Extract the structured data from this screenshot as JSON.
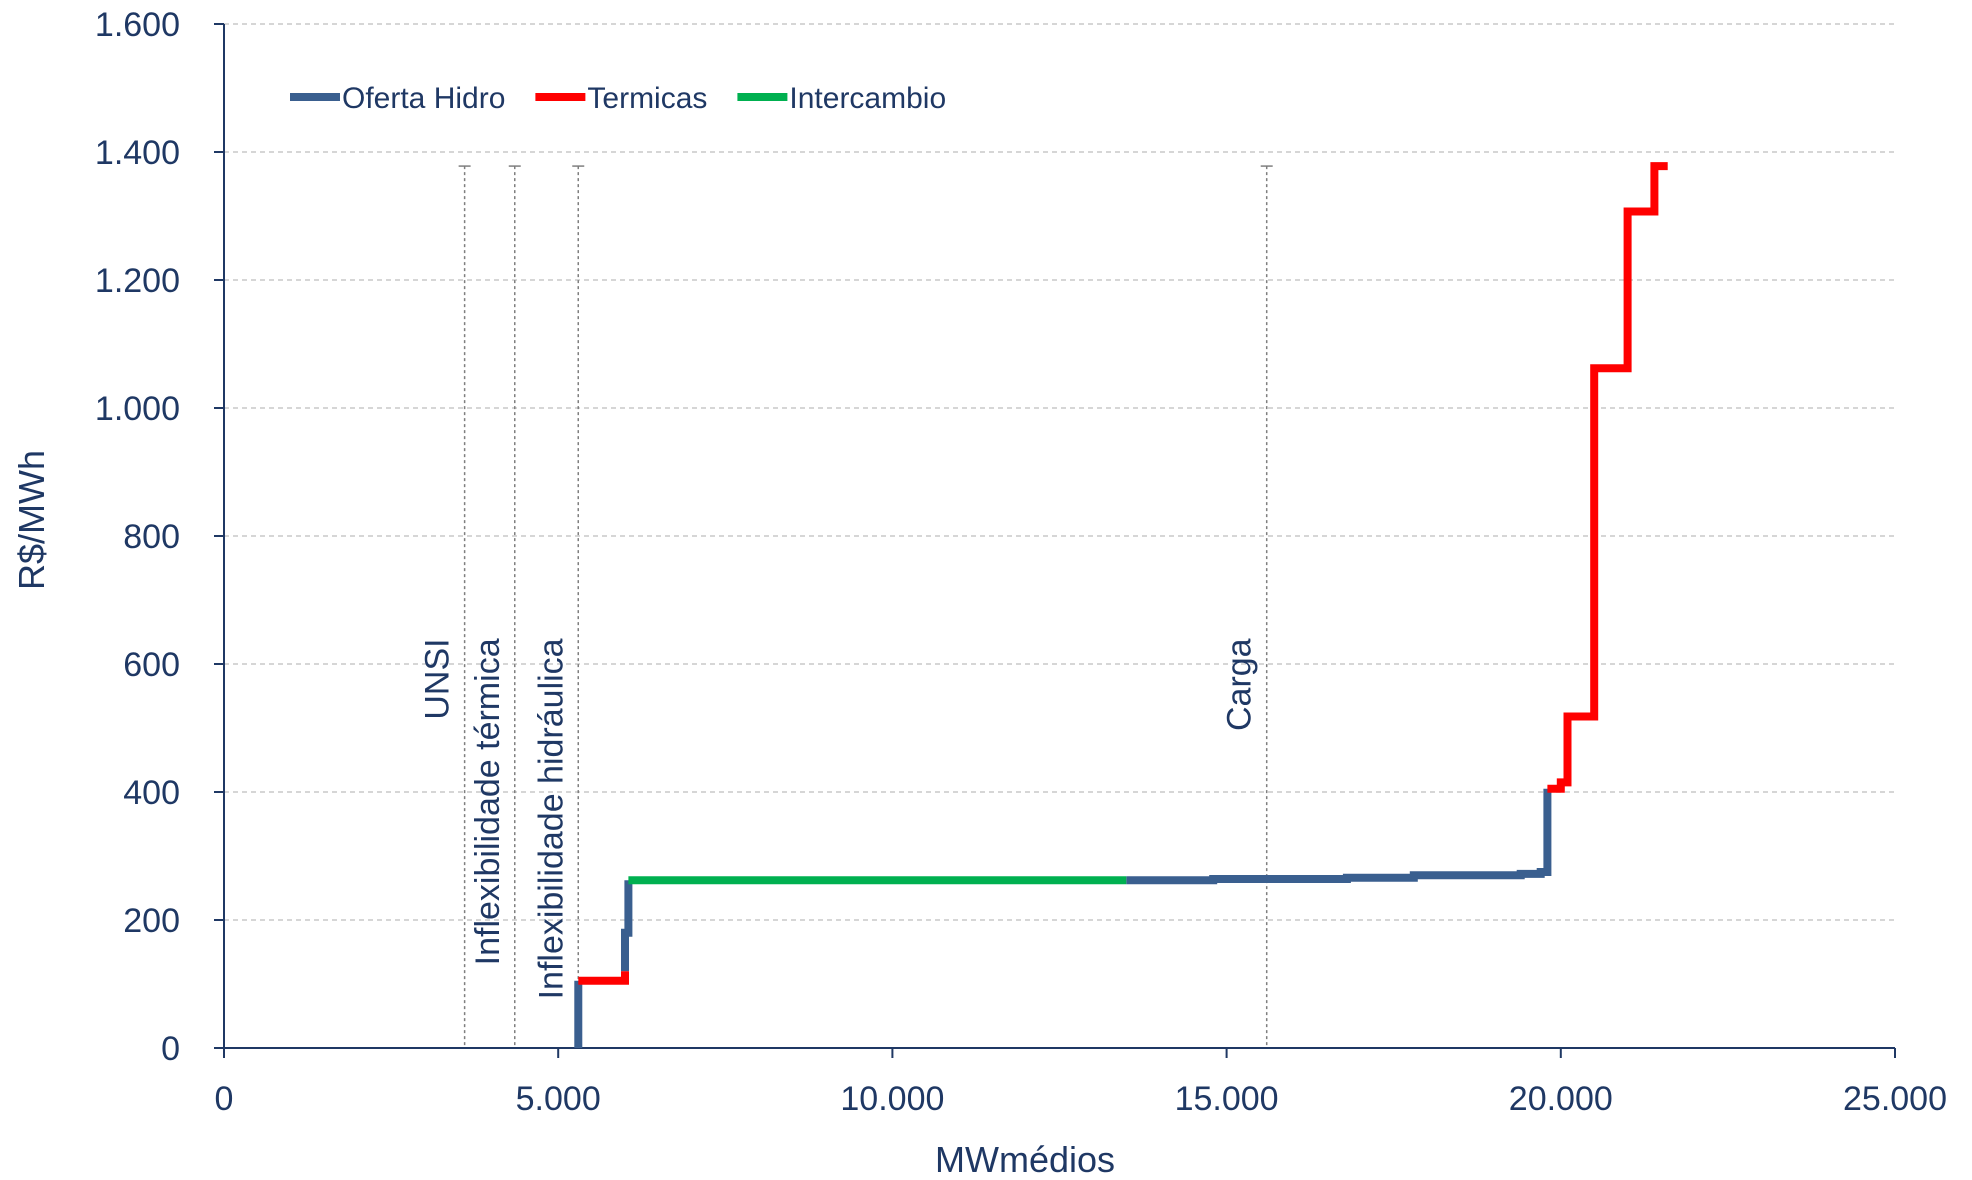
{
  "chart_data": {
    "type": "line",
    "xlabel": "MWmédios",
    "ylabel": "R$/MWh",
    "xlim": [
      0,
      25000
    ],
    "ylim": [
      0,
      1600
    ],
    "x_ticks": [
      0,
      5000,
      10000,
      15000,
      20000,
      25000
    ],
    "x_tick_labels": [
      "0",
      "5.000",
      "10.000",
      "15.000",
      "20.000",
      "25.000"
    ],
    "y_ticks": [
      0,
      200,
      400,
      600,
      800,
      1000,
      1200,
      1400,
      1600
    ],
    "y_tick_labels": [
      "0",
      "200",
      "400",
      "600",
      "800",
      "1.000",
      "1.200",
      "1.400",
      "1.600"
    ],
    "grid": "horizontal dashed",
    "legend_position": "top-left",
    "series": [
      {
        "name": "Oferta Hidro",
        "color": "#3a5f8f",
        "segments": [
          [
            [
              5300,
              0
            ],
            [
              5300,
              105
            ]
          ],
          [
            [
              6000,
              120
            ],
            [
              6000,
              180
            ],
            [
              6050,
              180
            ],
            [
              6050,
              262
            ]
          ],
          [
            [
              13500,
              262
            ],
            [
              14800,
              262
            ],
            [
              14800,
              264
            ],
            [
              16800,
              264
            ],
            [
              16800,
              266
            ],
            [
              17800,
              266
            ],
            [
              17800,
              270
            ],
            [
              19400,
              270
            ],
            [
              19400,
              272
            ],
            [
              19700,
              272
            ],
            [
              19700,
              275
            ],
            [
              19800,
              275
            ],
            [
              19800,
              405
            ]
          ]
        ]
      },
      {
        "name": "Termicas",
        "color": "#ff0000",
        "segments": [
          [
            [
              5300,
              105
            ],
            [
              6000,
              105
            ],
            [
              6000,
              120
            ]
          ],
          [
            [
              19800,
              405
            ],
            [
              20000,
              405
            ],
            [
              20000,
              415
            ],
            [
              20100,
              415
            ],
            [
              20100,
              518
            ],
            [
              20500,
              518
            ],
            [
              20500,
              1062
            ],
            [
              21000,
              1062
            ],
            [
              21000,
              1307
            ],
            [
              21400,
              1307
            ],
            [
              21400,
              1378
            ],
            [
              21600,
              1378
            ]
          ]
        ]
      },
      {
        "name": "Intercambio",
        "color": "#00b050",
        "segments": [
          [
            [
              6050,
              262
            ],
            [
              13500,
              262
            ]
          ]
        ]
      }
    ],
    "vertical_lines": [
      {
        "label": "UNSI",
        "x": 3600,
        "top": 1378
      },
      {
        "label": "Inflexibilidade térmica",
        "x": 4350,
        "top": 1378
      },
      {
        "label": "Inflexibilidade hidráulica",
        "x": 5300,
        "top": 1378
      },
      {
        "label": "Carga",
        "x": 15600,
        "top": 1378
      }
    ]
  }
}
